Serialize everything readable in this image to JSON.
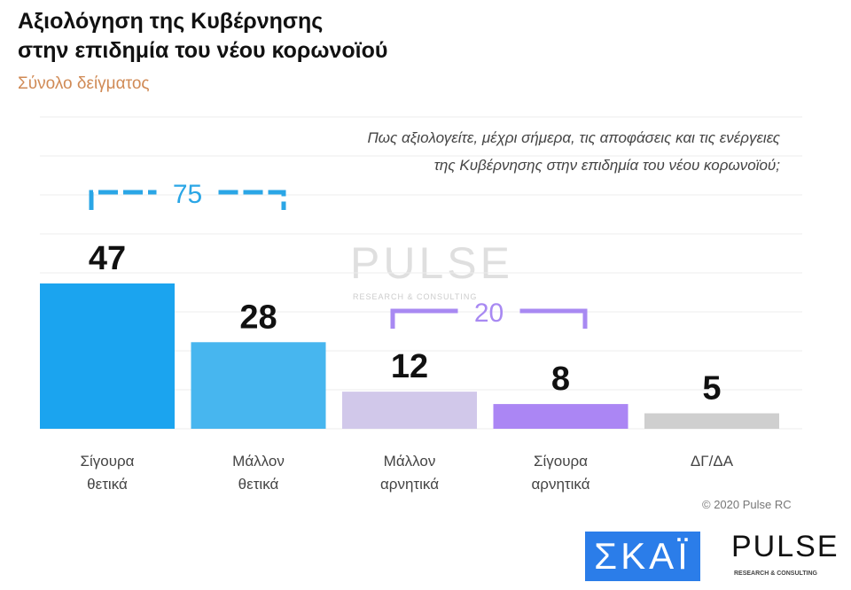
{
  "header": {
    "title_line1": "Αξιολόγηση της Κυβέρνησης",
    "title_line2": "στην επιδημία του νέου κορωνοϊού",
    "subtitle": "Σύνολο δείγματος"
  },
  "question_line1": "Πως αξιολογείτε, μέχρι σήμερα, τις αποφάσεις και τις ενέργειες",
  "question_line2": "της Κυβέρνησης στην επιδημία του νέου κορωνοϊού;",
  "chart_data": {
    "type": "bar",
    "categories": [
      [
        "Σίγουρα",
        "θετικά"
      ],
      [
        "Μάλλον",
        "θετικά"
      ],
      [
        "Μάλλον",
        "αρνητικά"
      ],
      [
        "Σίγουρα",
        "αρνητικά"
      ],
      [
        "ΔΓ/ΔΑ",
        ""
      ]
    ],
    "values": [
      47,
      28,
      12,
      8,
      5
    ],
    "colors": [
      "#1ba4ef",
      "#47b6ef",
      "#d1c8ea",
      "#ab86f4",
      "#cfcfcf"
    ],
    "ylim": [
      0,
      50
    ],
    "grid": true,
    "groups": [
      {
        "label": "75",
        "from": 0,
        "to": 1,
        "color": "#2aa6e6"
      },
      {
        "label": "20",
        "from": 2,
        "to": 3,
        "color": "#a889f2"
      }
    ]
  },
  "footer": {
    "copyright": "© 2020 Pulse RC",
    "logo_skai": "ΣΚΑΪ",
    "logo_pulse": "PULSE",
    "logo_pulse_sub": "RESEARCH & CONSULTING"
  },
  "watermark": {
    "text": "PULSE",
    "sub": "RESEARCH & CONSULTING"
  }
}
